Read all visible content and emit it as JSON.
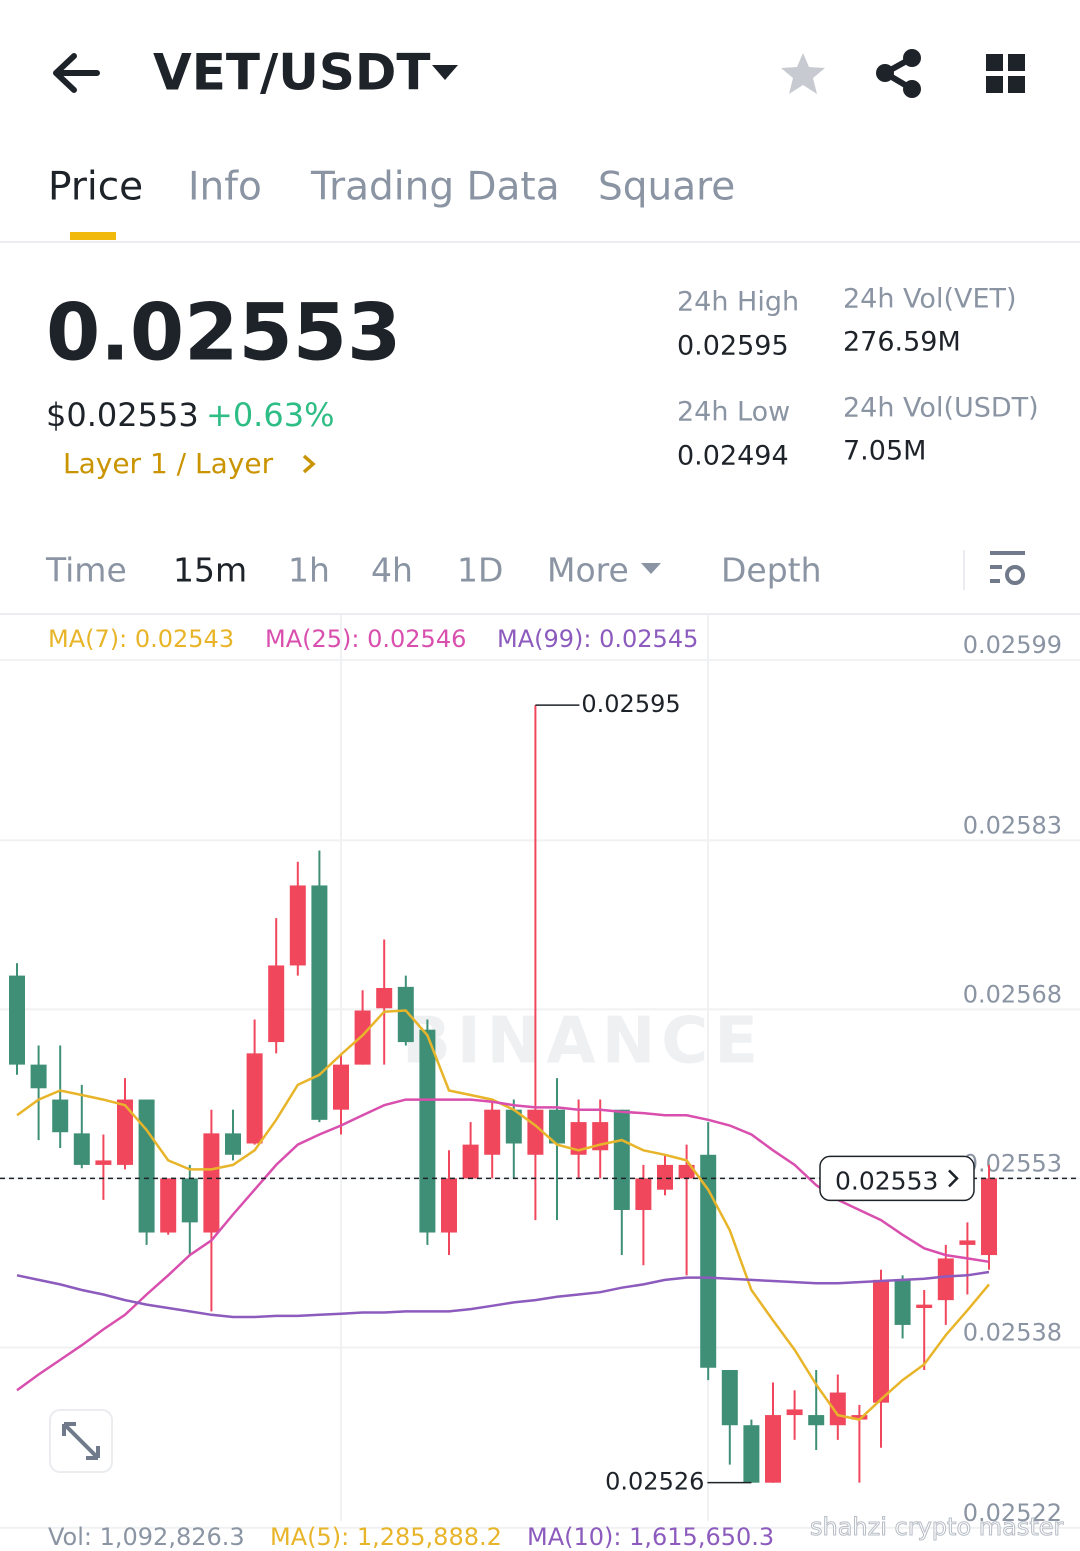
{
  "header": {
    "pair": "VET/USDT"
  },
  "tabs": [
    "Price",
    "Info",
    "Trading Data",
    "Square"
  ],
  "ticker": {
    "price": "0.02553",
    "usd_price": "$0.02553",
    "change": "+0.63%",
    "tag": "Layer 1 / Layer",
    "stats": [
      {
        "label": "24h High",
        "value": "0.02595"
      },
      {
        "label": "24h Vol(VET)",
        "value": "276.59M"
      },
      {
        "label": "24h Low",
        "value": "0.02494"
      },
      {
        "label": "24h Vol(USDT)",
        "value": "7.05M"
      }
    ]
  },
  "intervals": [
    "Time",
    "15m",
    "1h",
    "4h",
    "1D",
    "More",
    "Depth"
  ],
  "chart_data": {
    "type": "candlestick",
    "up_color": "#f0475d",
    "down_color": "#3f8f77",
    "ylim": [
      0.025226,
      0.02603
    ],
    "yticks": [
      0.02599,
      0.02583,
      0.02568,
      0.02553,
      0.02538,
      0.02522
    ],
    "high_label": 0.02595,
    "low_label": 0.02526,
    "last_price": 0.02553,
    "candles": {
      "open": [
        0.02571,
        0.025631,
        0.0256,
        0.02557,
        0.025542,
        0.025542,
        0.0256,
        0.025482,
        0.02553,
        0.025482,
        0.02557,
        0.025561,
        0.025651,
        0.025719,
        0.02579,
        0.025591,
        0.025631,
        0.025681,
        0.0257,
        0.025662,
        0.025482,
        0.02553,
        0.025551,
        0.025591,
        0.025551,
        0.025591,
        0.025551,
        0.025555,
        0.025591,
        0.025502,
        0.02552,
        0.02553,
        0.025551,
        0.02536,
        0.025311,
        0.02526,
        0.02532,
        0.02532,
        0.025311,
        0.025316,
        0.025331,
        0.02544,
        0.025415,
        0.025422,
        0.025471,
        0.025462
      ],
      "high": [
        0.025721,
        0.025648,
        0.025648,
        0.025613,
        0.025569,
        0.025619,
        0.0256,
        0.02553,
        0.025542,
        0.025591,
        0.025591,
        0.025671,
        0.025761,
        0.025811,
        0.025821,
        0.02564,
        0.025697,
        0.025742,
        0.02571,
        0.025671,
        0.025555,
        0.02558,
        0.0256,
        0.0256,
        0.02595,
        0.025619,
        0.0256,
        0.0256,
        0.025591,
        0.025542,
        0.025551,
        0.02556,
        0.02558,
        0.02536,
        0.025316,
        0.025349,
        0.025342,
        0.02536,
        0.025356,
        0.025329,
        0.025449,
        0.025444,
        0.025431,
        0.025471,
        0.025491,
        0.025542
      ],
      "low": [
        0.025622,
        0.025564,
        0.025557,
        0.025539,
        0.025511,
        0.025538,
        0.025471,
        0.02548,
        0.025462,
        0.025412,
        0.025546,
        0.02556,
        0.025641,
        0.02571,
        0.02558,
        0.025569,
        0.025631,
        0.025631,
        0.025648,
        0.025471,
        0.025462,
        0.02553,
        0.02553,
        0.02553,
        0.025493,
        0.025493,
        0.02553,
        0.02553,
        0.025462,
        0.025453,
        0.025515,
        0.025444,
        0.025351,
        0.025276,
        0.02526,
        0.02526,
        0.025298,
        0.025289,
        0.025298,
        0.02526,
        0.025291,
        0.025388,
        0.02536,
        0.0254,
        0.025427,
        0.025449
      ],
      "close": [
        0.025631,
        0.02561,
        0.025571,
        0.025542,
        0.025546,
        0.0256,
        0.025482,
        0.02553,
        0.025491,
        0.02557,
        0.025551,
        0.025641,
        0.025719,
        0.02579,
        0.025582,
        0.025631,
        0.025679,
        0.025699,
        0.025651,
        0.025482,
        0.02553,
        0.02556,
        0.025591,
        0.025561,
        0.025591,
        0.025561,
        0.02558,
        0.02558,
        0.025502,
        0.02553,
        0.025542,
        0.025542,
        0.025362,
        0.025311,
        0.02526,
        0.02532,
        0.025325,
        0.025311,
        0.02534,
        0.02532,
        0.02544,
        0.0254,
        0.025418,
        0.025459,
        0.025475,
        0.02553
      ]
    },
    "series": [
      {
        "name": "MA(7): 0.02543",
        "color": "#e8b52a",
        "values": [
          0.025586,
          0.0256,
          0.025608,
          0.025604,
          0.0256,
          0.025595,
          0.025573,
          0.025546,
          0.025538,
          0.025538,
          0.025542,
          0.025555,
          0.025582,
          0.025613,
          0.025622,
          0.02564,
          0.025657,
          0.025678,
          0.025679,
          0.025657,
          0.025608,
          0.025604,
          0.0256,
          0.025591,
          0.025577,
          0.02556,
          0.025555,
          0.02556,
          0.025564,
          0.025555,
          0.025551,
          0.025546,
          0.02552,
          0.025484,
          0.025431,
          0.025404,
          0.025378,
          0.025347,
          0.02532,
          0.025316,
          0.025334,
          0.025351,
          0.025365,
          0.025391,
          0.025413,
          0.025436
        ]
      },
      {
        "name": "MA(25): 0.02546",
        "color": "#d94fae",
        "values": [
          0.025342,
          0.025356,
          0.025369,
          0.025382,
          0.025396,
          0.025409,
          0.025427,
          0.025444,
          0.025462,
          0.025475,
          0.025498,
          0.02552,
          0.025542,
          0.02556,
          0.025569,
          0.025577,
          0.025586,
          0.025595,
          0.0256,
          0.0256,
          0.0256,
          0.0256,
          0.025598,
          0.025595,
          0.025593,
          0.025593,
          0.025591,
          0.025591,
          0.025589,
          0.025588,
          0.025586,
          0.025586,
          0.025582,
          0.025577,
          0.025569,
          0.025555,
          0.025542,
          0.025524,
          0.025511,
          0.025502,
          0.025493,
          0.02548,
          0.025468,
          0.025462,
          0.025459,
          0.025456
        ]
      },
      {
        "name": "MA(99): 0.02545",
        "color": "#8c5bbd",
        "values": [
          0.025444,
          0.02544,
          0.025436,
          0.025431,
          0.025427,
          0.025422,
          0.025418,
          0.025415,
          0.025412,
          0.025409,
          0.025407,
          0.025407,
          0.025408,
          0.025408,
          0.025409,
          0.02541,
          0.025411,
          0.025411,
          0.025412,
          0.025412,
          0.025412,
          0.025414,
          0.025417,
          0.02542,
          0.025422,
          0.025425,
          0.025427,
          0.025429,
          0.025433,
          0.025436,
          0.02544,
          0.025442,
          0.025442,
          0.025441,
          0.02544,
          0.025439,
          0.025438,
          0.025437,
          0.025437,
          0.025438,
          0.025439,
          0.02544,
          0.025441,
          0.025443,
          0.025444,
          0.025447
        ]
      }
    ]
  },
  "volume_legend": [
    "Vol: 1,092,826.3",
    "MA(5): 1,285,888.2",
    "MA(10): 1,615,650.3"
  ],
  "watermark": "BINANCE",
  "credit": "shahzi crypto master"
}
